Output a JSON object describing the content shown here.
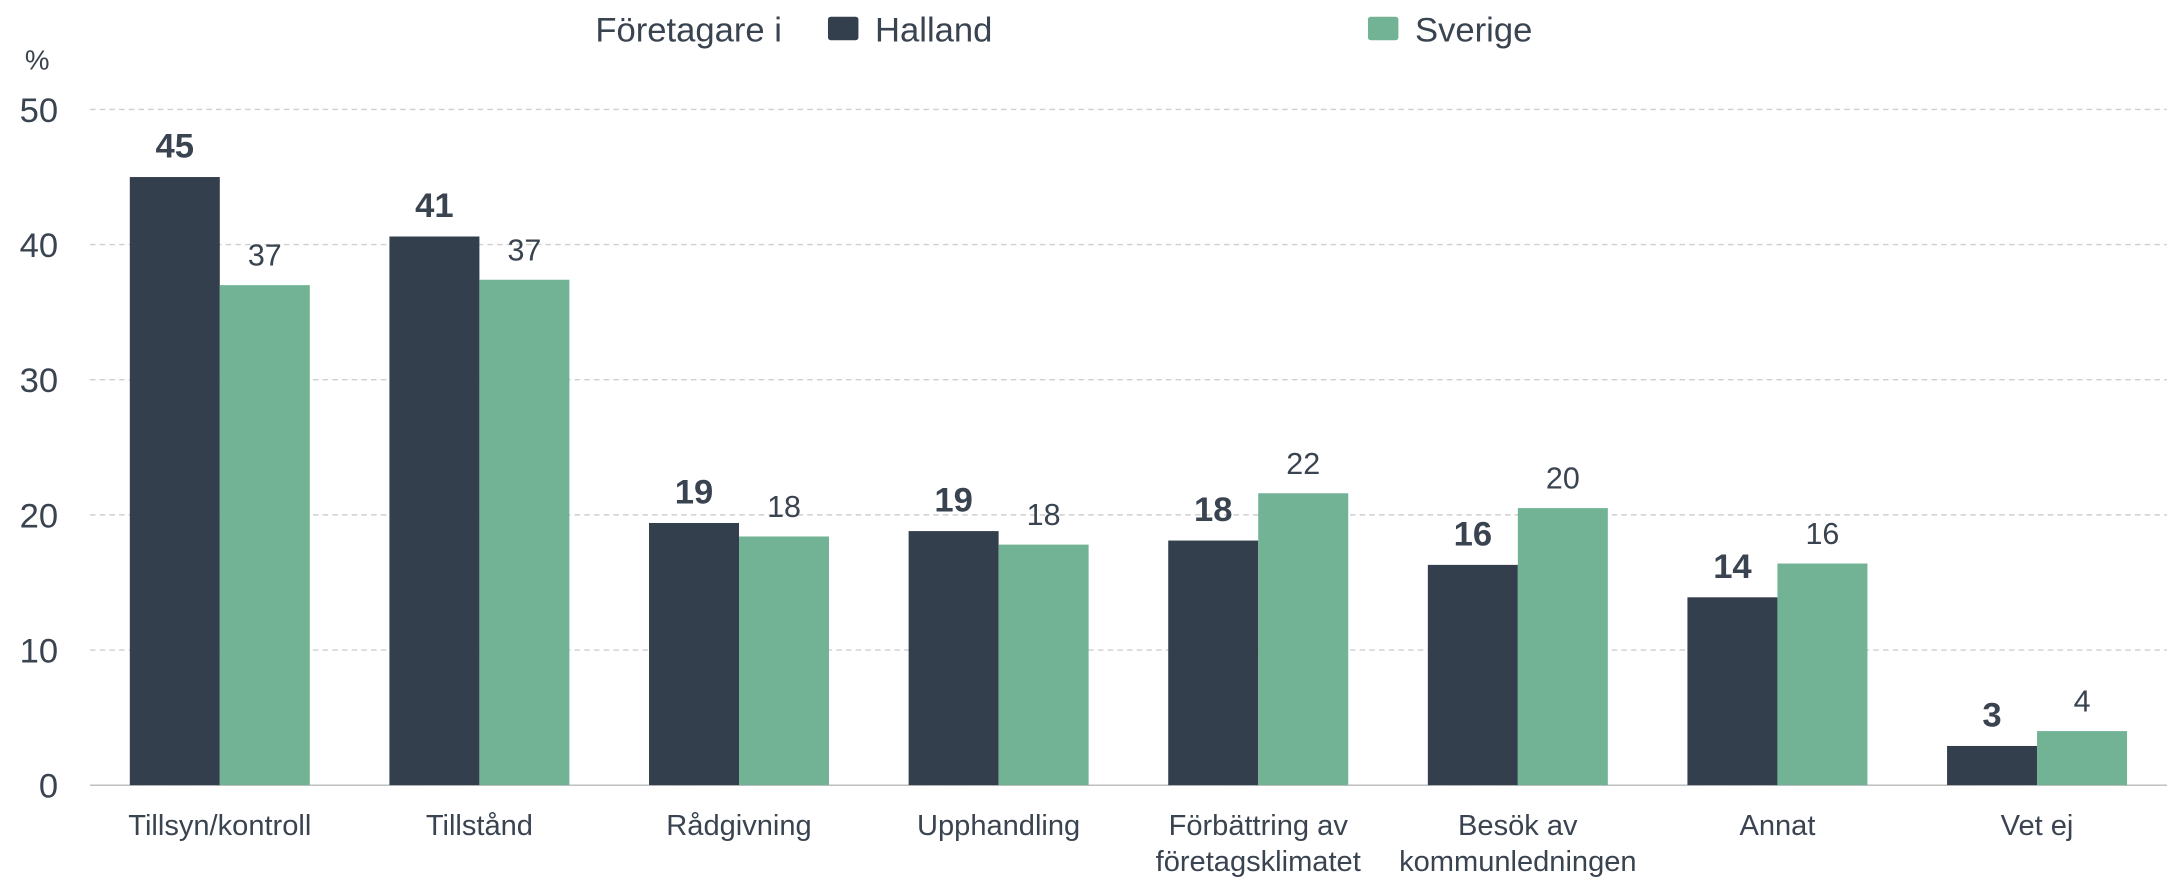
{
  "chart_data": {
    "type": "bar",
    "legend_title": "Företagare i",
    "y_label": "%",
    "categories": [
      "Tillsyn/kontroll",
      "Tillstånd",
      "Rådgivning",
      "Upphandling",
      "Förbättring av\nföretagsklimatet",
      "Besök av\nkommunledningen",
      "Annat",
      "Vet ej"
    ],
    "series": [
      {
        "name": "Halland",
        "color": "#333f4d",
        "values": [
          45,
          40.6,
          19.4,
          18.8,
          18.1,
          16.3,
          13.9,
          2.9
        ],
        "value_labels": [
          "45",
          "41",
          "19",
          "19",
          "18",
          "16",
          "14",
          "3"
        ]
      },
      {
        "name": "Sverige",
        "color": "#72b396",
        "values": [
          37,
          37.4,
          18.4,
          17.8,
          21.6,
          20.5,
          16.4,
          4.0
        ],
        "value_labels": [
          "37",
          "37",
          "18",
          "18",
          "22",
          "20",
          "16",
          "4"
        ]
      }
    ],
    "ylim": [
      0,
      50
    ],
    "yticks": [
      0,
      10,
      20,
      30,
      40,
      50
    ],
    "grid": true,
    "legend": "top"
  }
}
